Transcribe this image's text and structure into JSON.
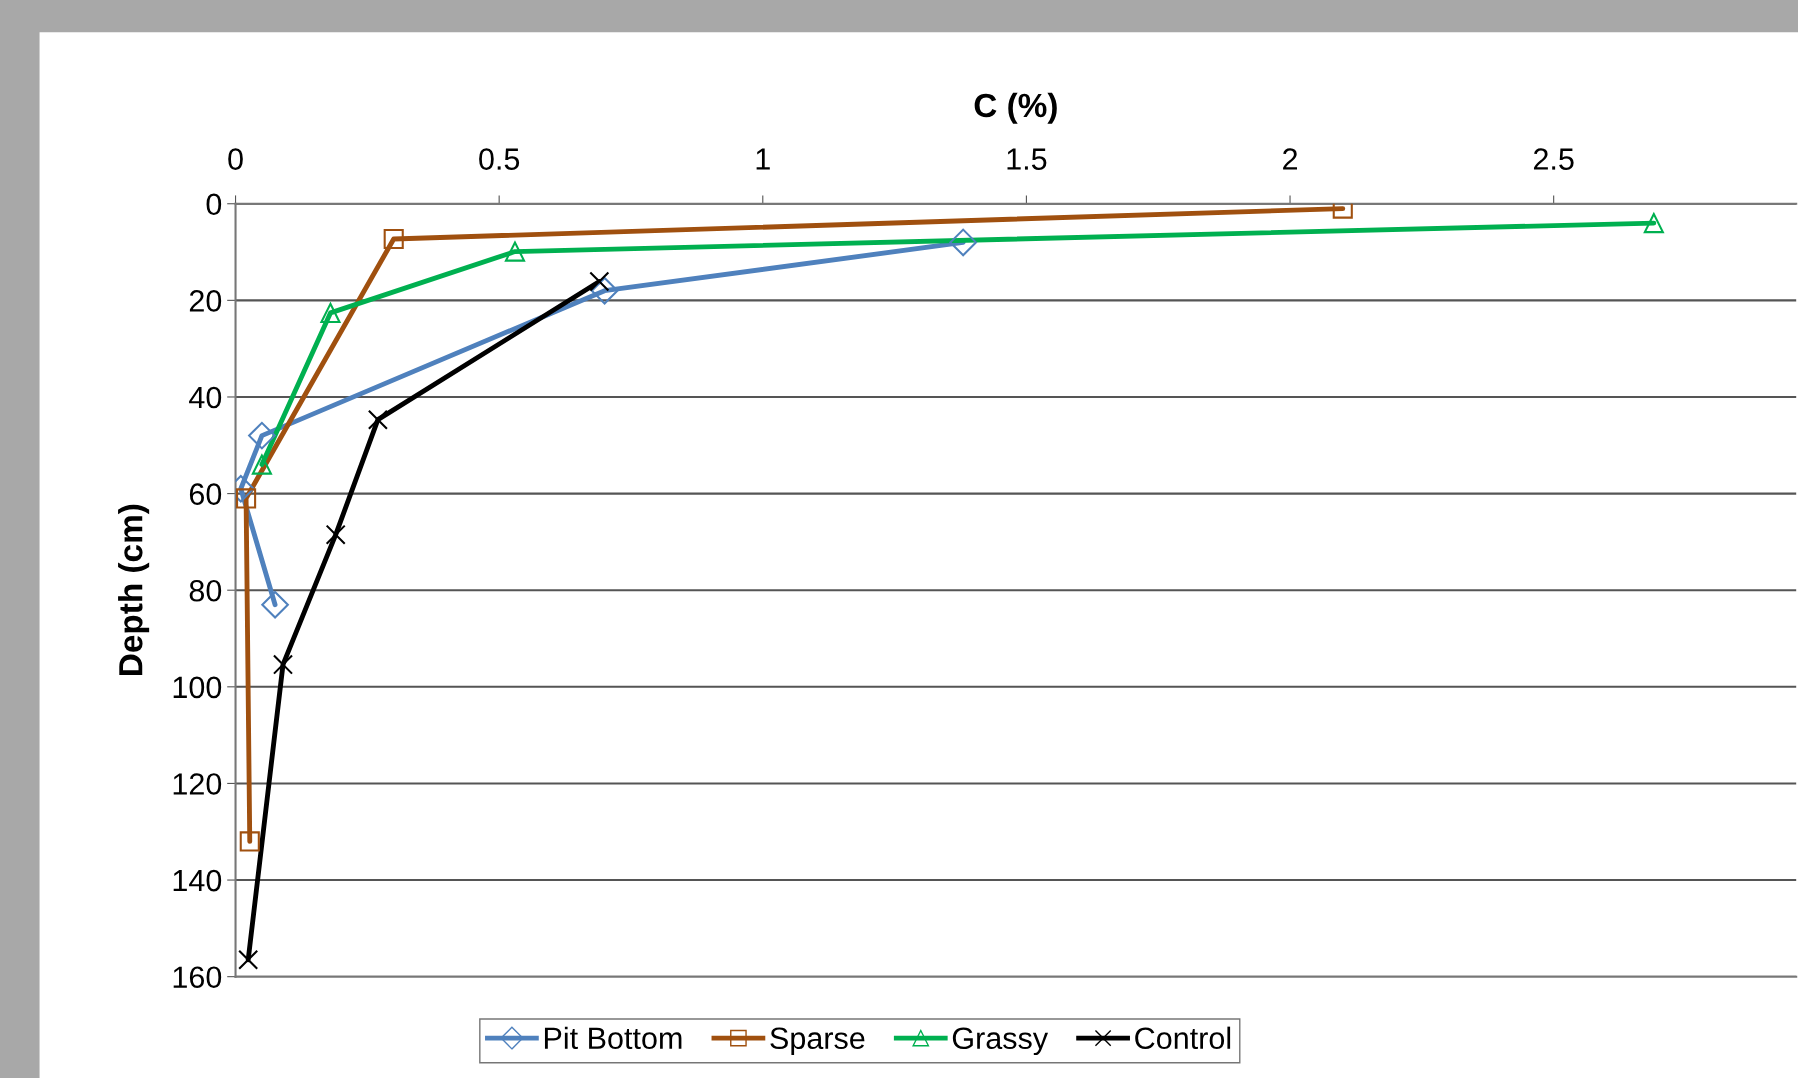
{
  "chart_data": {
    "type": "line",
    "xlabel": "C (%)",
    "ylabel": "Depth (cm)",
    "xlim": [
      0,
      2.96
    ],
    "xticks": [
      0,
      0.5,
      1,
      1.5,
      2,
      2.5
    ],
    "ylim": [
      160,
      0
    ],
    "yticks": [
      0,
      20,
      40,
      60,
      80,
      100,
      120,
      140,
      160
    ],
    "grid": "y",
    "legend": "bottom",
    "series": [
      {
        "name": "Pit Bottom",
        "color": "#4f81bd",
        "marker": "diamond",
        "x": [
          1.38,
          0.7,
          0.05,
          0.01,
          0.075
        ],
        "values": [
          8,
          18,
          48,
          59,
          83
        ]
      },
      {
        "name": "Sparse",
        "color": "#a0500f",
        "marker": "square",
        "x": [
          2.1,
          0.3,
          0.02,
          0.027
        ],
        "values": [
          1,
          7.3,
          61,
          132
        ]
      },
      {
        "name": "Grassy",
        "color": "#00b050",
        "marker": "triangle",
        "x": [
          2.69,
          0.53,
          0.18,
          0.05
        ],
        "values": [
          4,
          9.9,
          22.6,
          54
        ]
      },
      {
        "name": "Control",
        "color": "#000000",
        "marker": "cross",
        "x": [
          0.69,
          0.27,
          0.19,
          0.09,
          0.024
        ],
        "values": [
          16.1,
          44.7,
          68.5,
          95.4,
          156.5
        ]
      }
    ]
  }
}
